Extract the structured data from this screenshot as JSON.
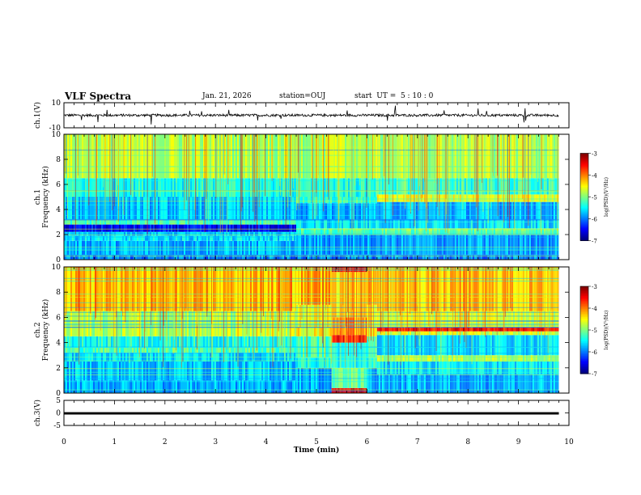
{
  "header": {
    "title": "VLF Spectra",
    "date": "Jan. 21, 2026",
    "station": "station=OUJ",
    "start_ut": "start  UT =  5 : 10 : 0"
  },
  "chart_data": [
    {
      "type": "line",
      "id": "ch1_waveform",
      "ylabel": "ch.1(V)",
      "ylim": [
        -10,
        10
      ],
      "yticks": [
        "10",
        "-10"
      ],
      "xlim": [
        0,
        10
      ],
      "series": [
        {
          "name": "ch.1 amplitude",
          "baseline": 0,
          "typical_amplitude": 1,
          "xmax": 9.8
        }
      ]
    },
    {
      "type": "heatmap",
      "id": "ch1_spectrogram",
      "ylabel_top": "ch.1",
      "ylabel": "Frequency (kHz)",
      "ylim": [
        0,
        10
      ],
      "yticks": [
        "0",
        "2",
        "4",
        "6",
        "8",
        "10"
      ],
      "xlim": [
        0,
        10
      ],
      "data_xmax": 9.8,
      "segments": [
        {
          "t": [
            0,
            4.6
          ],
          "bands": [
            [
              0,
              0.4,
              0.25
            ],
            [
              0.4,
              1.5,
              0.3
            ],
            [
              1.5,
              1.9,
              0.35
            ],
            [
              1.9,
              2.2,
              0.32
            ],
            [
              2.2,
              2.8,
              0.12
            ],
            [
              2.8,
              3.2,
              0.45
            ],
            [
              3.2,
              5.0,
              0.32
            ],
            [
              5.0,
              6.5,
              0.4
            ],
            [
              6.5,
              10,
              0.55
            ]
          ]
        },
        {
          "t": [
            4.6,
            6.2
          ],
          "bands": [
            [
              0,
              0.4,
              0.25
            ],
            [
              0.4,
              2.0,
              0.28
            ],
            [
              2.0,
              2.5,
              0.45
            ],
            [
              2.5,
              3.2,
              0.35
            ],
            [
              3.2,
              4.5,
              0.3
            ],
            [
              4.5,
              5.0,
              0.42
            ],
            [
              5.0,
              6.5,
              0.4
            ],
            [
              6.5,
              10,
              0.55
            ]
          ]
        },
        {
          "t": [
            6.2,
            9.8
          ],
          "bands": [
            [
              0,
              0.4,
              0.25
            ],
            [
              0.4,
              2.0,
              0.28
            ],
            [
              2.0,
              2.5,
              0.48
            ],
            [
              2.5,
              3.2,
              0.35
            ],
            [
              3.2,
              4.6,
              0.3
            ],
            [
              4.6,
              5.2,
              0.6
            ],
            [
              5.2,
              6.5,
              0.42
            ],
            [
              6.5,
              10,
              0.55
            ]
          ]
        }
      ],
      "colorbar": {
        "label": "log(PSD)(V²/Hz)",
        "range": [
          -7,
          -3
        ],
        "ticks": [
          "-3",
          "-4",
          "-5",
          "-6",
          "-7"
        ]
      }
    },
    {
      "type": "heatmap",
      "id": "ch2_spectrogram",
      "ylabel_top": "ch.2",
      "ylabel": "Frequency (kHz)",
      "ylim": [
        0,
        10
      ],
      "yticks": [
        "0",
        "2",
        "4",
        "6",
        "8",
        "10"
      ],
      "xlim": [
        0,
        10
      ],
      "data_xmax": 9.8,
      "segments": [
        {
          "t": [
            0,
            4.6
          ],
          "bands": [
            [
              0,
              1.0,
              0.3
            ],
            [
              1.0,
              2.5,
              0.32
            ],
            [
              2.5,
              3.2,
              0.35
            ],
            [
              3.2,
              3.6,
              0.45
            ],
            [
              3.6,
              4.5,
              0.4
            ],
            [
              4.5,
              6.5,
              0.55
            ],
            [
              6.5,
              10,
              0.68
            ]
          ]
        },
        {
          "t": [
            4.6,
            5.3
          ],
          "bands": [
            [
              0,
              2.0,
              0.3
            ],
            [
              2.0,
              2.8,
              0.4
            ],
            [
              2.8,
              4.5,
              0.45
            ],
            [
              4.5,
              5.2,
              0.62
            ],
            [
              5.2,
              7.0,
              0.62
            ],
            [
              7.0,
              10,
              0.7
            ]
          ]
        },
        {
          "t": [
            5.3,
            6.0
          ],
          "bands": [
            [
              0,
              0.4,
              0.9
            ],
            [
              0.4,
              2.0,
              0.48
            ],
            [
              2.0,
              4.0,
              0.4
            ],
            [
              4.0,
              4.6,
              0.85
            ],
            [
              4.6,
              6.0,
              0.72
            ],
            [
              6.0,
              9.6,
              0.65
            ],
            [
              9.6,
              10,
              0.9
            ]
          ]
        },
        {
          "t": [
            6.0,
            6.2
          ],
          "bands": [
            [
              0,
              2.0,
              0.3
            ],
            [
              2.0,
              2.8,
              0.4
            ],
            [
              2.8,
              4.5,
              0.45
            ],
            [
              4.5,
              5.2,
              0.62
            ],
            [
              5.2,
              7.0,
              0.62
            ],
            [
              7.0,
              10,
              0.7
            ]
          ]
        },
        {
          "t": [
            6.2,
            9.8
          ],
          "bands": [
            [
              0,
              1.5,
              0.3
            ],
            [
              1.5,
              2.5,
              0.35
            ],
            [
              2.5,
              3.0,
              0.55
            ],
            [
              3.0,
              4.6,
              0.35
            ],
            [
              4.6,
              4.9,
              0.58
            ],
            [
              4.9,
              5.2,
              0.88
            ],
            [
              5.2,
              6.5,
              0.6
            ],
            [
              6.5,
              10,
              0.68
            ]
          ]
        }
      ],
      "colorbar": {
        "label": "log(PSD)(V²/Hz)",
        "range": [
          -7,
          -3
        ],
        "ticks": [
          "-3",
          "-4",
          "-5",
          "-6",
          "-7"
        ]
      }
    },
    {
      "type": "line",
      "id": "ch3_waveform",
      "ylabel": "ch.3(V)",
      "ylim": [
        -5,
        5
      ],
      "yticks": [
        "5",
        "0",
        "-5"
      ],
      "xlim": [
        0,
        10
      ],
      "series": [
        {
          "name": "ch.3 amplitude",
          "baseline": 0,
          "typical_amplitude": 0.3,
          "xmax": 9.8
        }
      ]
    }
  ],
  "xaxis": {
    "label": "Time (min)",
    "ticks": [
      "0",
      "1",
      "2",
      "3",
      "4",
      "5",
      "6",
      "7",
      "8",
      "9",
      "10"
    ]
  }
}
